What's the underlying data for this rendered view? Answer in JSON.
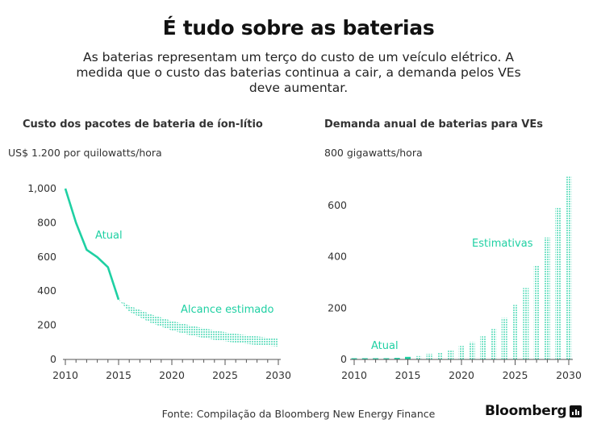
{
  "title": "É tudo sobre as baterias",
  "subtitle": "As baterias representam um terço do custo de um veículo elétrico. A medida que o custo das baterias continua a cair, a demanda pelos VEs deve aumentar.",
  "source": "Fonte: Compilação da Bloomberg New Energy Finance",
  "brand": "Bloomberg",
  "brand_icon": "bloomberg-terminal-icon",
  "colors": {
    "accent": "#1fd0a3",
    "text": "#222222",
    "axis": "#555555"
  },
  "chart_data": [
    {
      "type": "area",
      "title": "Custo dos pacotes de bateria de íon-lítio",
      "ylabel": "US$ 1.200 por quilowatts/hora",
      "xlabel": "",
      "xlim": [
        2010,
        2030
      ],
      "ylim": [
        0,
        1200
      ],
      "x_ticks": [
        2010,
        2015,
        2020,
        2025,
        2030
      ],
      "y_ticks": [
        0,
        200,
        400,
        600,
        800,
        1000
      ],
      "y_tick_labels": [
        "0",
        "200",
        "400",
        "600",
        "800",
        "1,000"
      ],
      "actual": {
        "label": "Atual",
        "x": [
          2010,
          2011,
          2012,
          2013,
          2014,
          2015
        ],
        "y": [
          1000,
          800,
          642,
          599,
          540,
          350
        ]
      },
      "estimate_range": {
        "label": "Alcance estimado",
        "x": [
          2015,
          2016,
          2018,
          2020,
          2022,
          2024,
          2026,
          2028,
          2030
        ],
        "upper": [
          350,
          315,
          265,
          225,
          195,
          170,
          150,
          135,
          120
        ],
        "lower": [
          350,
          280,
          215,
          170,
          138,
          115,
          98,
          85,
          75
        ]
      },
      "grid": false
    },
    {
      "type": "bar",
      "title": "Demanda anual de baterias para VEs",
      "ylabel": "800 gigawatts/hora",
      "xlabel": "",
      "xlim": [
        2010,
        2030
      ],
      "ylim": [
        0,
        800
      ],
      "x_ticks": [
        2010,
        2015,
        2020,
        2025,
        2030
      ],
      "y_ticks": [
        0,
        200,
        400,
        600
      ],
      "y_tick_labels": [
        "0",
        "200",
        "400",
        "600"
      ],
      "categories": [
        2010,
        2011,
        2012,
        2013,
        2014,
        2015,
        2016,
        2017,
        2018,
        2019,
        2020,
        2021,
        2022,
        2023,
        2024,
        2025,
        2026,
        2027,
        2028,
        2029,
        2030
      ],
      "series": [
        {
          "name": "Atual",
          "values": [
            1,
            1,
            2,
            3,
            6,
            10,
            null,
            null,
            null,
            null,
            null,
            null,
            null,
            null,
            null,
            null,
            null,
            null,
            null,
            null,
            null
          ]
        },
        {
          "name": "Estimativas",
          "values": [
            null,
            null,
            null,
            null,
            null,
            null,
            13,
            22,
            28,
            37,
            52,
            68,
            90,
            118,
            162,
            212,
            278,
            365,
            475,
            590,
            712
          ]
        }
      ],
      "grid": false
    }
  ]
}
